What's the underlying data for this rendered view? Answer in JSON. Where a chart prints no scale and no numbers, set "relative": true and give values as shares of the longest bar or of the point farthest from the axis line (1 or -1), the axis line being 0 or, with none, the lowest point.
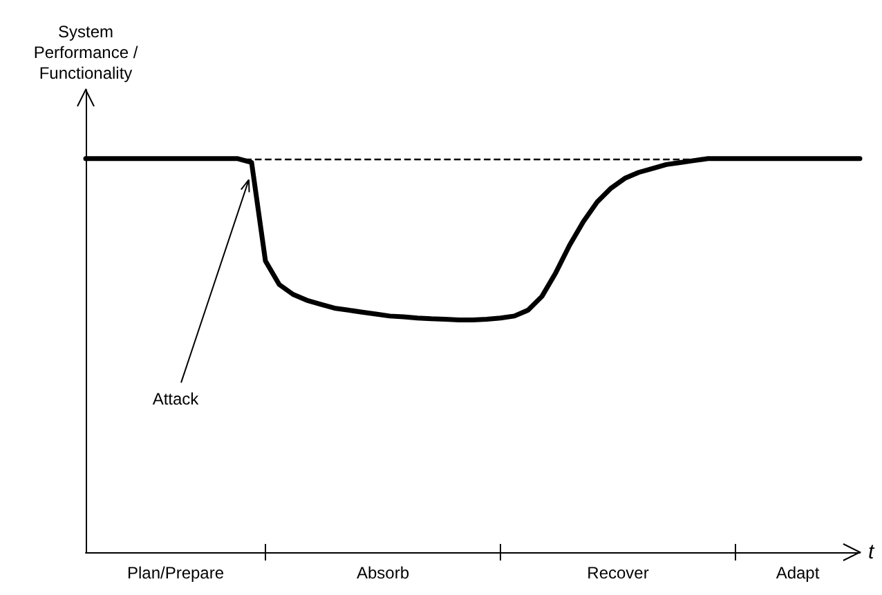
{
  "chart_data": {
    "type": "line",
    "relative": true,
    "xlabel": "t",
    "ylabel": "System Performance / Functionality",
    "categories": [
      null,
      null,
      null,
      null,
      null,
      null,
      null,
      null,
      null,
      null,
      null,
      null,
      null,
      null,
      null,
      null,
      null,
      null,
      null,
      null,
      null,
      null,
      null,
      null,
      null,
      null,
      null,
      null,
      null,
      null,
      null,
      null,
      null,
      null,
      null,
      null,
      null,
      null,
      null,
      null,
      null,
      null,
      null,
      null,
      null,
      null,
      null,
      null,
      null,
      null,
      null,
      null,
      null,
      null,
      null,
      null,
      null
    ],
    "series": [
      {
        "color": "#000000",
        "values": [
          1,
          1,
          1,
          1,
          1,
          1,
          1,
          1,
          1,
          1,
          1,
          1,
          0.99,
          0.74,
          0.68,
          0.655,
          0.64,
          0.63,
          0.62,
          0.615,
          0.61,
          0.605,
          0.6,
          0.598,
          0.595,
          0.593,
          0.592,
          0.59,
          0.59,
          0.592,
          0.595,
          0.6,
          0.615,
          0.65,
          0.71,
          0.78,
          0.84,
          0.89,
          0.925,
          0.95,
          0.965,
          0.975,
          0.985,
          0.99,
          0.995,
          1,
          1,
          1,
          1,
          1,
          1,
          1,
          1,
          1,
          1,
          1,
          1
        ]
      }
    ],
    "ref_lines": [
      {
        "axis": "y",
        "value": 1,
        "line_style": "dashed",
        "color": "#000000"
      }
    ],
    "annotations": [
      "Plan/Prepare",
      "Absorb",
      "Recover",
      "Adapt",
      "Attack"
    ],
    "marker": "none",
    "line_style": "solid",
    "grid": false
  }
}
